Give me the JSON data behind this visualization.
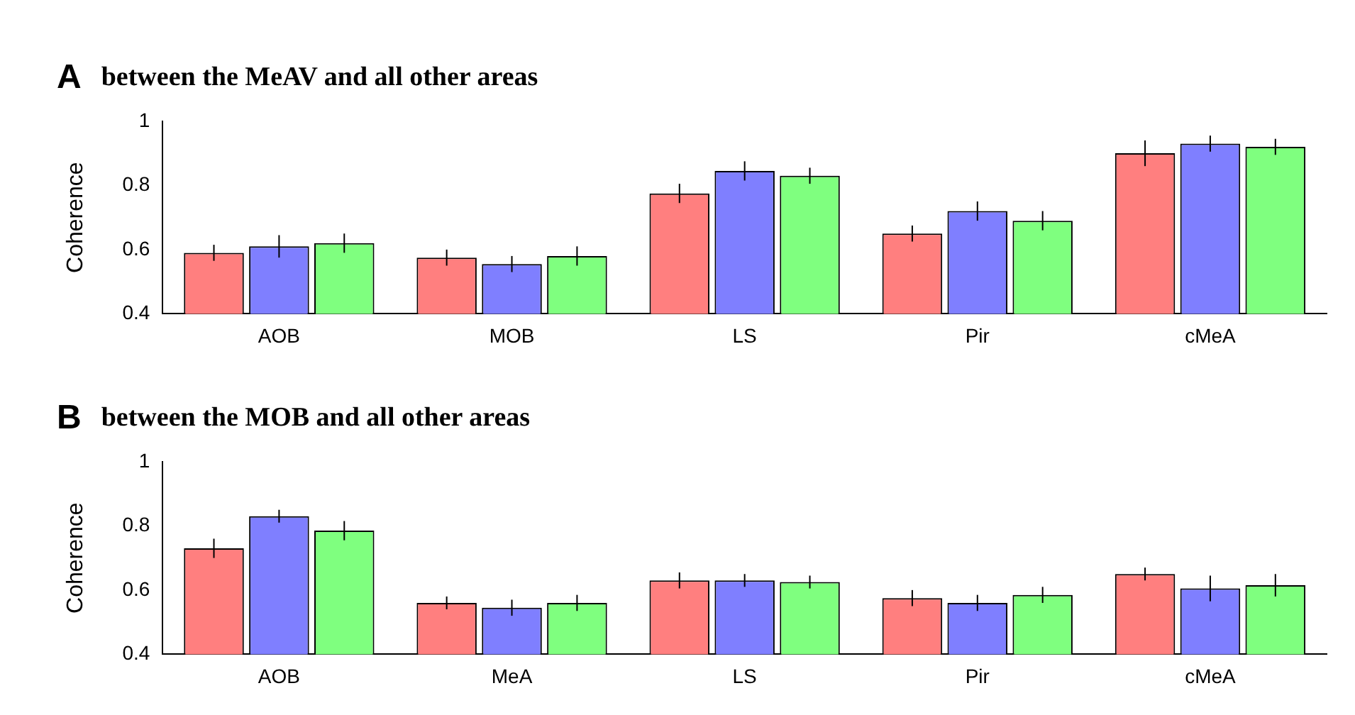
{
  "chart_data": [
    {
      "type": "bar",
      "title": "between the MeAV and all other areas",
      "annotations": [
        "A"
      ],
      "ylabel": "Coherence",
      "categories": [
        "AOB",
        "MOB",
        "LS",
        "Pir",
        "cMeA"
      ],
      "ylim": [
        0.4,
        1
      ],
      "yticks": [
        0.4,
        0.6,
        0.8,
        1
      ],
      "grid": false,
      "legend": false,
      "series": [
        {
          "color": "#ff7f7f",
          "values": [
            0.59,
            0.575,
            0.775,
            0.65,
            0.9
          ],
          "errors": [
            0.025,
            0.025,
            0.03,
            0.025,
            0.04
          ]
        },
        {
          "color": "#7f7fff",
          "values": [
            0.61,
            0.555,
            0.845,
            0.72,
            0.93
          ],
          "errors": [
            0.035,
            0.025,
            0.03,
            0.03,
            0.025
          ]
        },
        {
          "color": "#7fff7f",
          "values": [
            0.62,
            0.58,
            0.83,
            0.69,
            0.92
          ],
          "errors": [
            0.03,
            0.03,
            0.025,
            0.03,
            0.025
          ]
        }
      ]
    },
    {
      "type": "bar",
      "title": "between the MOB and all other areas",
      "annotations": [
        "B"
      ],
      "ylabel": "Coherence",
      "categories": [
        "AOB",
        "MeA",
        "LS",
        "Pir",
        "cMeA"
      ],
      "ylim": [
        0.4,
        1
      ],
      "yticks": [
        0.4,
        0.6,
        0.8,
        1
      ],
      "grid": false,
      "legend": false,
      "series": [
        {
          "color": "#ff7f7f",
          "values": [
            0.73,
            0.56,
            0.63,
            0.575,
            0.65
          ],
          "errors": [
            0.03,
            0.02,
            0.025,
            0.025,
            0.02
          ]
        },
        {
          "color": "#7f7fff",
          "values": [
            0.83,
            0.545,
            0.63,
            0.56,
            0.605
          ],
          "errors": [
            0.02,
            0.025,
            0.02,
            0.025,
            0.04
          ]
        },
        {
          "color": "#7fff7f",
          "values": [
            0.785,
            0.56,
            0.625,
            0.585,
            0.615
          ],
          "errors": [
            0.03,
            0.025,
            0.02,
            0.025,
            0.035
          ]
        }
      ]
    }
  ]
}
